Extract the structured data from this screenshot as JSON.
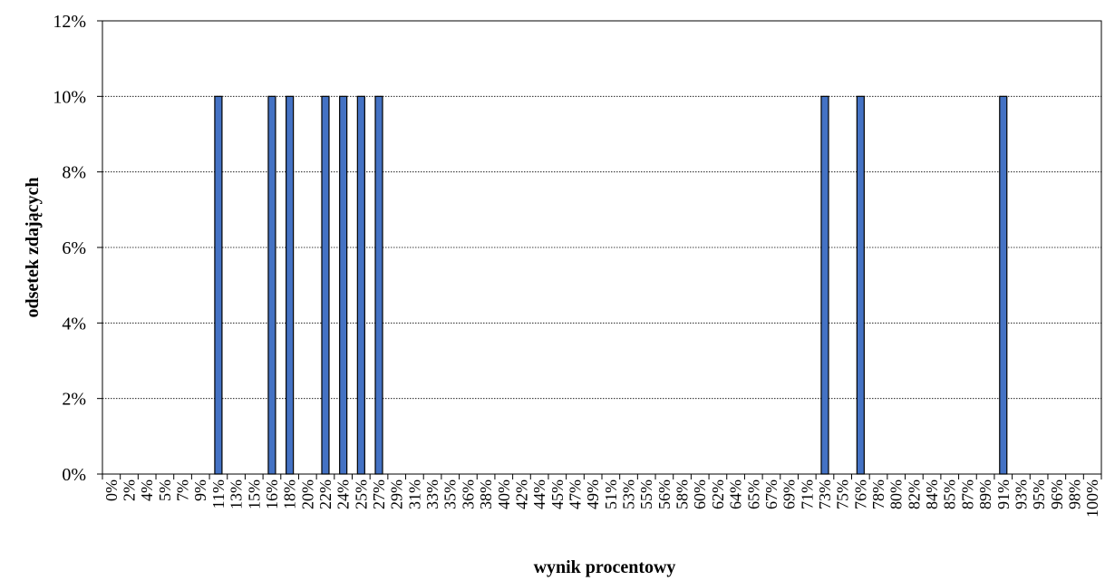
{
  "chart_data": {
    "type": "bar",
    "xlabel": "wynik procentowy",
    "ylabel": "odsetek zdających",
    "ylim": [
      0,
      12
    ],
    "y_ticks": [
      "0%",
      "2%",
      "4%",
      "6%",
      "8%",
      "10%",
      "12%"
    ],
    "y_tick_values": [
      0,
      2,
      4,
      6,
      8,
      10,
      12
    ],
    "grid": true,
    "categories": [
      "0%",
      "2%",
      "4%",
      "5%",
      "7%",
      "9%",
      "11%",
      "13%",
      "15%",
      "16%",
      "18%",
      "20%",
      "22%",
      "24%",
      "25%",
      "27%",
      "29%",
      "31%",
      "33%",
      "35%",
      "36%",
      "38%",
      "40%",
      "42%",
      "44%",
      "45%",
      "47%",
      "49%",
      "51%",
      "53%",
      "55%",
      "56%",
      "58%",
      "60%",
      "62%",
      "64%",
      "65%",
      "67%",
      "69%",
      "71%",
      "73%",
      "75%",
      "76%",
      "78%",
      "80%",
      "82%",
      "84%",
      "85%",
      "87%",
      "89%",
      "91%",
      "93%",
      "95%",
      "96%",
      "98%",
      "100%"
    ],
    "values": [
      0,
      0,
      0,
      0,
      0,
      0,
      10,
      0,
      0,
      10,
      10,
      0,
      10,
      10,
      10,
      10,
      0,
      0,
      0,
      0,
      0,
      0,
      0,
      0,
      0,
      0,
      0,
      0,
      0,
      0,
      0,
      0,
      0,
      0,
      0,
      0,
      0,
      0,
      0,
      0,
      10,
      0,
      10,
      0,
      0,
      0,
      0,
      0,
      0,
      0,
      10,
      0,
      0,
      0,
      0,
      0
    ],
    "bar_color": "#4472C4",
    "bar_stroke": "#000000"
  }
}
